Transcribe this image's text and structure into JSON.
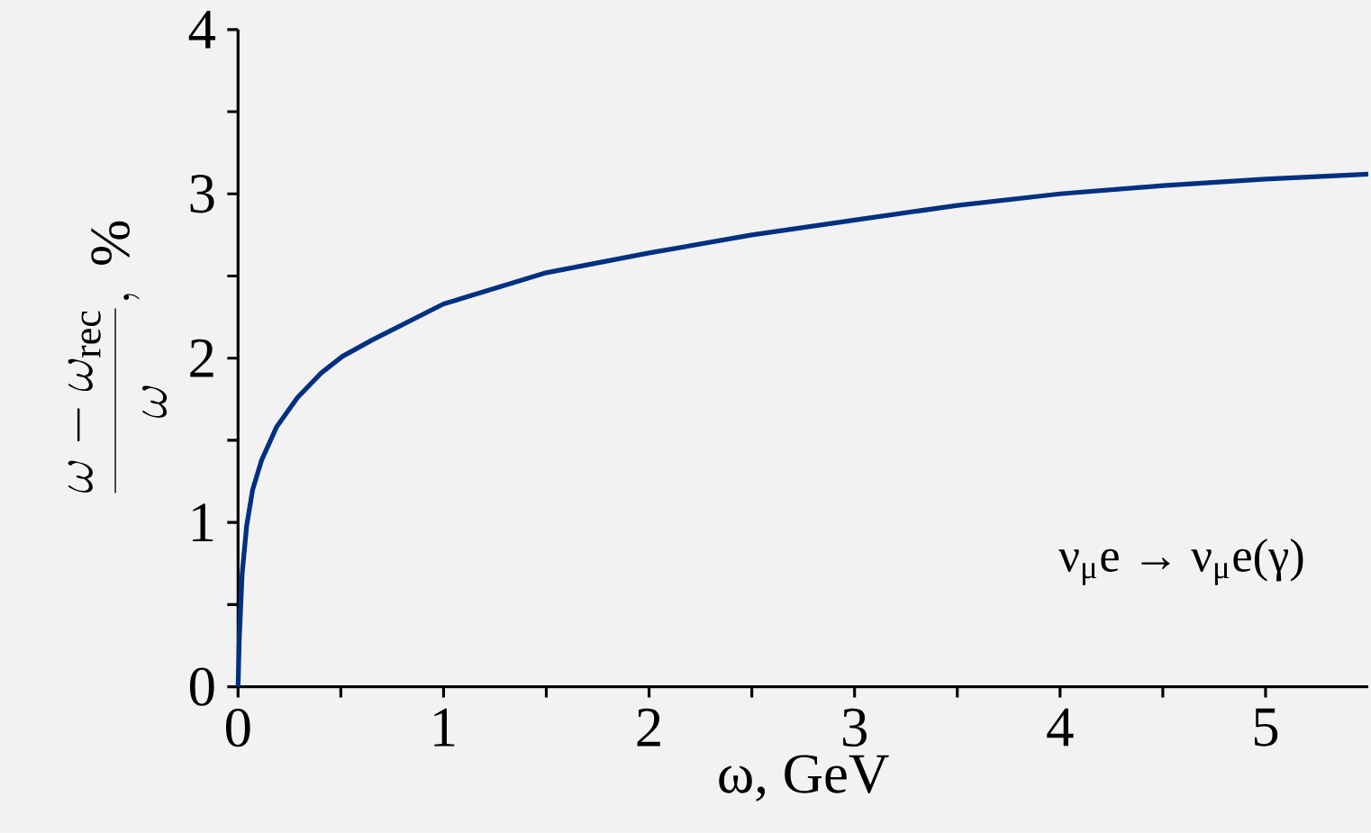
{
  "chart_data": {
    "type": "line",
    "xlabel": "ω, GeV",
    "ylabel": "\\frac{\\omega-\\omega_{\\mathrm{rec}}}{\\omega},\\ \\%",
    "annotations": [
      "ν$_{μ}$e → ν$_{μ}$e(γ)"
    ],
    "xlim": [
      0,
      5.5
    ],
    "ylim": [
      0,
      4
    ],
    "xticks": [
      0,
      {
        "value": 0.5,
        "label": null
      },
      1,
      {
        "value": 1.5,
        "label": null
      },
      2,
      {
        "value": 2.5,
        "label": null
      },
      3,
      {
        "value": 3.5,
        "label": null
      },
      4,
      {
        "value": 4.5,
        "label": null
      },
      5
    ],
    "yticks": [
      0,
      {
        "value": 0.5,
        "label": null
      },
      1,
      {
        "value": 1.5,
        "label": null
      },
      2,
      {
        "value": 2.5,
        "label": null
      },
      3,
      {
        "value": 3.5,
        "label": null
      },
      4
    ],
    "series": [
      {
        "color": "#003080",
        "x": [
          0,
          0.006,
          0.02,
          0.042,
          0.071,
          0.115,
          0.187,
          0.289,
          0.405,
          0.507,
          0.652,
          1,
          1.5,
          2,
          2.5,
          3,
          3.5,
          4,
          4.5,
          5,
          5.5
        ],
        "values": [
          0,
          0.29,
          0.69,
          0.98,
          1.2,
          1.38,
          1.58,
          1.76,
          1.91,
          2.01,
          2.11,
          2.33,
          2.52,
          2.64,
          2.75,
          2.84,
          2.93,
          3.0,
          3.05,
          3.09,
          3.12
        ]
      }
    ]
  }
}
